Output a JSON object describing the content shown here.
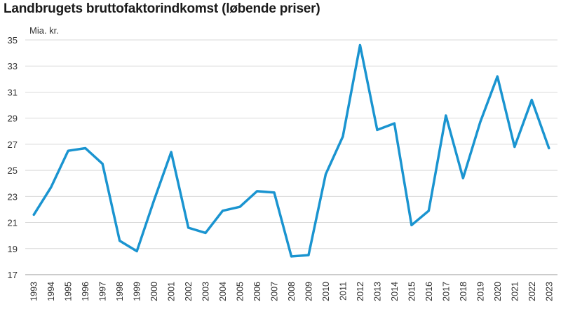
{
  "chart_data": {
    "type": "line",
    "title": "Landbrugets bruttofaktorindkomst (løbende priser)",
    "ylabel": "Mia. kr.",
    "xlabel": "",
    "ylim": [
      17,
      35
    ],
    "yticks": [
      17,
      19,
      21,
      23,
      25,
      27,
      29,
      31,
      33,
      35
    ],
    "grid": true,
    "legend": "none",
    "line_color": "#1a94d0",
    "x": [
      "1993",
      "1994",
      "1995",
      "1996",
      "1997",
      "1998",
      "1999",
      "2000",
      "2001",
      "2002",
      "2003",
      "2004",
      "2005",
      "2006",
      "2007",
      "2008",
      "2009",
      "2010",
      "2011",
      "2012",
      "2013",
      "2014",
      "2015",
      "2016",
      "2017",
      "2018",
      "2019",
      "2020",
      "2021",
      "2022",
      "2023"
    ],
    "series": [
      {
        "values": [
          21.6,
          23.7,
          26.5,
          26.7,
          25.5,
          19.6,
          18.8,
          22.7,
          26.4,
          20.6,
          20.2,
          21.9,
          22.2,
          23.4,
          23.3,
          18.4,
          18.5,
          24.7,
          27.6,
          34.6,
          28.1,
          28.6,
          20.8,
          21.9,
          29.2,
          24.4,
          28.7,
          32.2,
          26.8,
          30.4,
          26.7
        ]
      }
    ]
  }
}
